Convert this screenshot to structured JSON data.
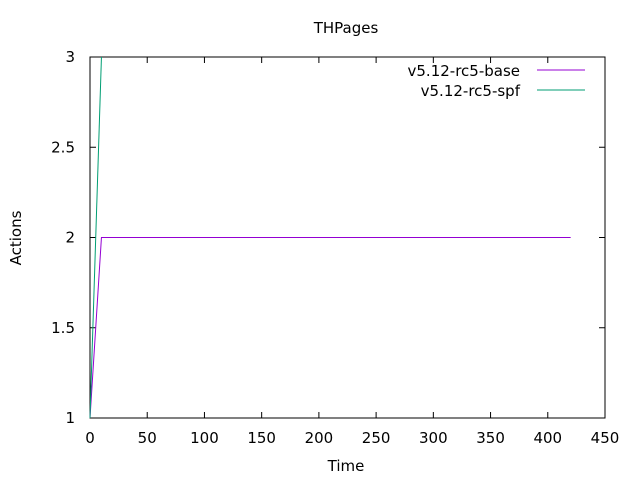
{
  "chart_data": {
    "type": "line",
    "title": "THPages",
    "xlabel": "Time",
    "ylabel": "Actions",
    "xlim": [
      0,
      450
    ],
    "ylim": [
      1,
      3
    ],
    "xticks": [
      0,
      50,
      100,
      150,
      200,
      250,
      300,
      350,
      400,
      450
    ],
    "yticks": [
      1,
      1.5,
      2,
      2.5,
      3
    ],
    "ytick_labels": [
      "1",
      "1.5",
      "2",
      "2.5",
      "3"
    ],
    "grid": false,
    "legend_position": "top-right",
    "series": [
      {
        "name": "v5.12-rc5-base",
        "color": "#9400d3",
        "points": [
          [
            0,
            1
          ],
          [
            10,
            2
          ],
          [
            420,
            2
          ]
        ]
      },
      {
        "name": "v5.12-rc5-spf",
        "color": "#009e73",
        "points": [
          [
            0,
            1
          ],
          [
            10,
            3
          ]
        ]
      }
    ]
  }
}
